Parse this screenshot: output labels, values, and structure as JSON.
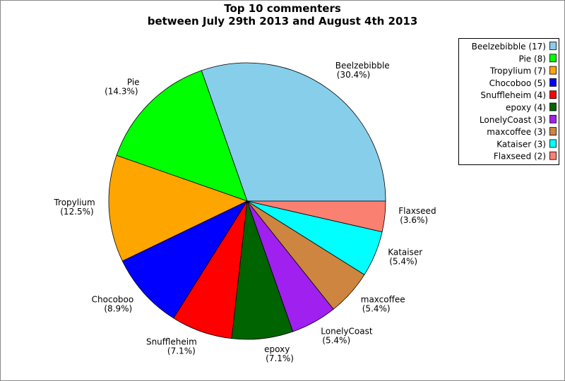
{
  "chart_data": {
    "type": "pie",
    "title": "Top 10 commenters",
    "subtitle": "between July 29th 2013 and August 4th 2013",
    "categories": [
      "Beelzebibble",
      "Pie",
      "Tropylium",
      "Chocoboo",
      "Snuffleheim",
      "epoxy",
      "LonelyCoast",
      "maxcoffee",
      "Kataiser",
      "Flaxseed"
    ],
    "values": [
      17,
      8,
      7,
      5,
      4,
      4,
      3,
      3,
      3,
      2
    ],
    "legend_labels": [
      "Beelzebibble (17)",
      "Pie (8)",
      "Tropylium (7)",
      "Chocoboo (5)",
      "Snuffleheim (4)",
      "epoxy (4)",
      "LonelyCoast (3)",
      "maxcoffee (3)",
      "Kataiser (3)",
      "Flaxseed (2)"
    ],
    "percentages": [
      30.4,
      14.3,
      12.5,
      8.9,
      7.1,
      7.1,
      5.4,
      5.4,
      5.4,
      3.6
    ],
    "percent_labels": [
      "(30.4%)",
      "(14.3%)",
      "(12.5%)",
      "(8.9%)",
      "(7.1%)",
      "(7.1%)",
      "(5.4%)",
      "(5.4%)",
      "(5.4%)",
      "(3.6%)"
    ],
    "colors": [
      "#87ceeb",
      "#00ff00",
      "#ffa500",
      "#0000ff",
      "#ff0000",
      "#006400",
      "#a020f0",
      "#cd853f",
      "#00ffff",
      "#fa8072"
    ],
    "legend_position": "upper right"
  }
}
